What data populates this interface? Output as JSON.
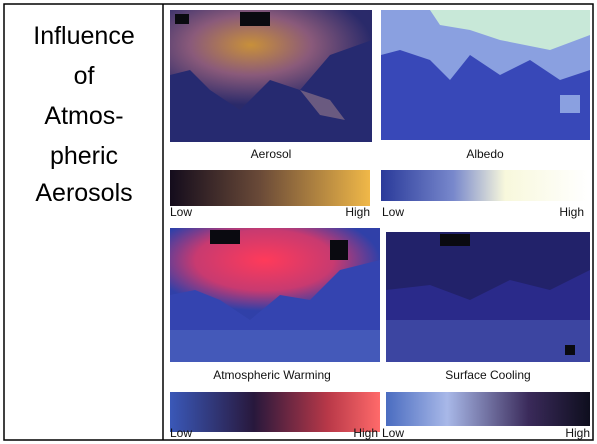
{
  "title_lines": [
    "Influence",
    "of",
    "Atmos-",
    "pheric",
    "Aerosols"
  ],
  "panels": [
    {
      "caption": "Aerosol",
      "low": "Low",
      "high": "High"
    },
    {
      "caption": "Albedo",
      "low": "Low",
      "high": "High"
    },
    {
      "caption": "Atmospheric Warming",
      "low": "Low",
      "high": "High"
    },
    {
      "caption": "Surface Cooling",
      "low": "Low",
      "high": "High"
    }
  ]
}
